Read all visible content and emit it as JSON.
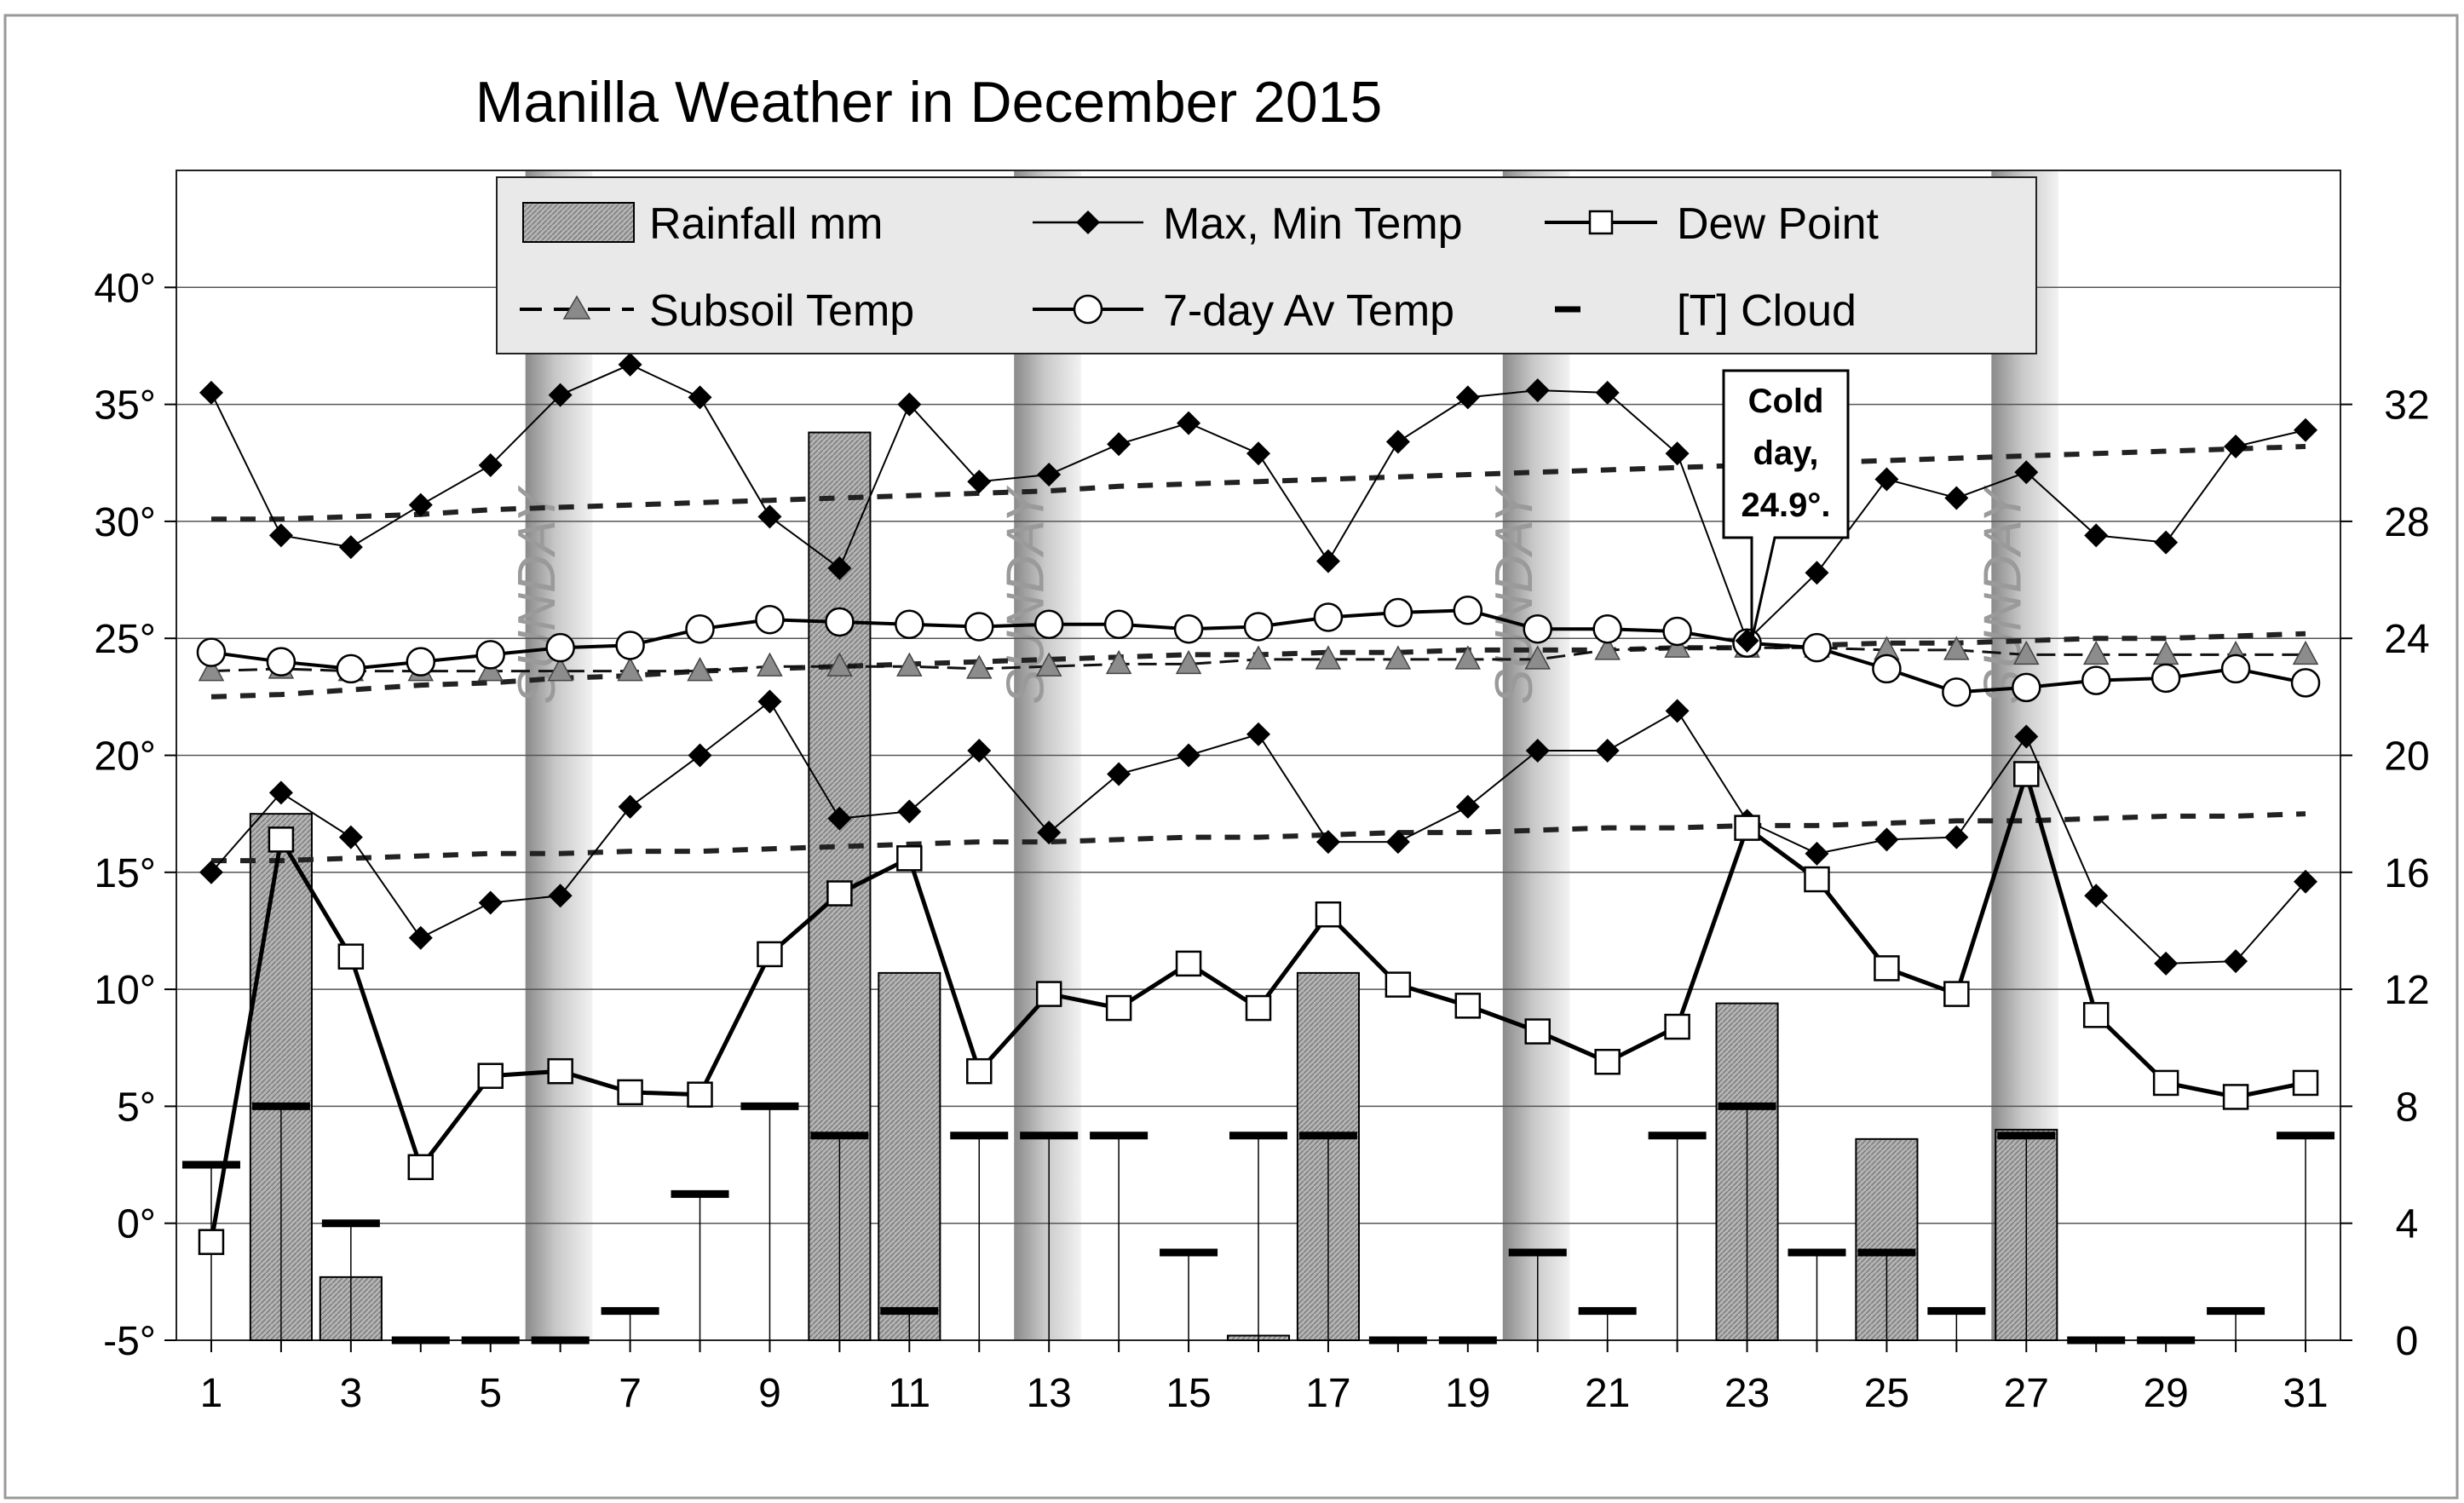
{
  "chart_data": {
    "type": "line",
    "title": "Manilla Weather in December 2015",
    "xlabel": "",
    "ylabel": "",
    "x": [
      1,
      2,
      3,
      4,
      5,
      6,
      7,
      8,
      9,
      10,
      11,
      12,
      13,
      14,
      15,
      16,
      17,
      18,
      19,
      20,
      21,
      22,
      23,
      24,
      25,
      26,
      27,
      28,
      29,
      30,
      31
    ],
    "x_tick_labels": [
      "1",
      "3",
      "5",
      "7",
      "9",
      "11",
      "13",
      "15",
      "17",
      "19",
      "21",
      "23",
      "25",
      "27",
      "29",
      "31"
    ],
    "x_tick_values": [
      1,
      3,
      5,
      7,
      9,
      11,
      13,
      15,
      17,
      19,
      21,
      23,
      25,
      27,
      29,
      31
    ],
    "x_range": [
      0.5,
      31.5
    ],
    "y_left_range": [
      -5,
      45
    ],
    "y_left_ticks": [
      -5,
      0,
      5,
      10,
      15,
      20,
      25,
      30,
      35,
      40
    ],
    "y_left_tick_labels": [
      "-5°",
      "0°",
      "5°",
      "10°",
      "15°",
      "20°",
      "25°",
      "30°",
      "35°",
      "40°"
    ],
    "y_right_range": [
      0,
      40
    ],
    "y_right_ticks": [
      0,
      4,
      8,
      12,
      16,
      20,
      24,
      28,
      32
    ],
    "y_right_tick_labels": [
      "0",
      "4",
      "8",
      "12",
      "16",
      "20",
      "24",
      "28",
      "32"
    ],
    "grid": true,
    "sunday_days": [
      6,
      13,
      20,
      27
    ],
    "sunday_label": "SUNDAY",
    "series": [
      {
        "name": "Rainfall mm",
        "kind": "bar",
        "axis": "left",
        "values": [
          null,
          17.5,
          -2.3,
          null,
          null,
          null,
          null,
          null,
          null,
          33.8,
          10.7,
          null,
          null,
          null,
          null,
          -4.8,
          10.7,
          null,
          null,
          null,
          null,
          null,
          9.4,
          null,
          3.6,
          null,
          4.0,
          null,
          null,
          null,
          null
        ]
      },
      {
        "name": "Max Temp",
        "kind": "line",
        "axis": "left",
        "values": [
          35.5,
          29.4,
          28.9,
          30.7,
          32.4,
          35.4,
          36.7,
          35.3,
          30.2,
          28.0,
          35.0,
          31.7,
          32.0,
          33.3,
          34.2,
          32.9,
          28.3,
          33.4,
          35.3,
          35.6,
          35.5,
          32.9,
          24.9,
          27.8,
          31.8,
          31.0,
          32.1,
          29.4,
          29.1,
          33.2,
          33.9
        ]
      },
      {
        "name": "Min Temp",
        "kind": "line",
        "axis": "left",
        "values": [
          15.0,
          18.4,
          16.5,
          12.2,
          13.7,
          14.0,
          17.8,
          20.0,
          22.3,
          17.3,
          17.6,
          20.2,
          16.7,
          19.2,
          20.0,
          20.9,
          16.3,
          16.3,
          17.8,
          20.2,
          20.2,
          21.9,
          17.2,
          15.8,
          16.4,
          16.5,
          20.8,
          14.0,
          11.1,
          11.2,
          14.6
        ]
      },
      {
        "name": "Dew Point",
        "kind": "line",
        "axis": "left",
        "values": [
          -0.8,
          16.4,
          11.4,
          2.4,
          6.3,
          6.5,
          5.6,
          5.5,
          11.5,
          14.1,
          15.6,
          6.5,
          9.8,
          9.2,
          11.1,
          9.2,
          13.2,
          10.2,
          9.3,
          8.2,
          6.9,
          8.4,
          16.9,
          14.7,
          10.9,
          9.8,
          19.2,
          8.9,
          6.0,
          5.4,
          6.0
        ]
      },
      {
        "name": "Subsoil Temp",
        "kind": "line",
        "axis": "left",
        "values": [
          23.6,
          23.7,
          23.6,
          23.6,
          23.6,
          23.6,
          23.6,
          23.6,
          23.8,
          23.8,
          23.8,
          23.7,
          23.8,
          23.9,
          23.9,
          24.1,
          24.1,
          24.1,
          24.1,
          24.1,
          24.5,
          24.6,
          24.6,
          24.6,
          24.5,
          24.5,
          24.3,
          24.3,
          24.3,
          24.3,
          24.3
        ]
      },
      {
        "name": "7-day Av Temp",
        "kind": "line",
        "axis": "left",
        "values": [
          24.4,
          24.0,
          23.7,
          24.0,
          24.3,
          24.6,
          24.7,
          25.4,
          25.8,
          25.7,
          25.6,
          25.5,
          25.6,
          25.6,
          25.4,
          25.5,
          25.9,
          26.1,
          26.2,
          25.4,
          25.4,
          25.3,
          24.8,
          24.6,
          23.7,
          22.7,
          22.9,
          23.2,
          23.3,
          23.7,
          23.1
        ]
      },
      {
        "name": "Max Temp trend",
        "kind": "dashed",
        "axis": "left",
        "values": [
          30.1,
          30.1,
          30.2,
          30.3,
          30.5,
          30.6,
          30.7,
          30.8,
          30.9,
          31.0,
          31.1,
          31.2,
          31.3,
          31.5,
          31.6,
          31.7,
          31.8,
          31.9,
          32.0,
          32.1,
          32.2,
          32.3,
          32.4,
          32.5,
          32.6,
          32.7,
          32.8,
          32.9,
          33.0,
          33.1,
          33.2
        ]
      },
      {
        "name": "Subsoil trend",
        "kind": "dashed",
        "axis": "left",
        "values": [
          22.5,
          22.6,
          22.8,
          23.0,
          23.1,
          23.3,
          23.4,
          23.6,
          23.7,
          23.8,
          23.9,
          24.0,
          24.1,
          24.2,
          24.3,
          24.3,
          24.4,
          24.4,
          24.5,
          24.5,
          24.5,
          24.6,
          24.6,
          24.7,
          24.8,
          24.8,
          24.9,
          25.0,
          25.0,
          25.1,
          25.2
        ]
      },
      {
        "name": "Min Temp trend",
        "kind": "dashed",
        "axis": "left",
        "values": [
          15.5,
          15.5,
          15.6,
          15.7,
          15.8,
          15.8,
          15.9,
          15.9,
          16.0,
          16.1,
          16.2,
          16.3,
          16.3,
          16.4,
          16.5,
          16.5,
          16.6,
          16.7,
          16.7,
          16.8,
          16.9,
          16.9,
          17.0,
          17.0,
          17.1,
          17.2,
          17.2,
          17.3,
          17.4,
          17.4,
          17.5
        ]
      },
      {
        "name": "[T] Cloud",
        "kind": "cloud",
        "axis": "right",
        "values": [
          6,
          8,
          4,
          0,
          0,
          0,
          1,
          5,
          8,
          7,
          1,
          7,
          7,
          7,
          3,
          7,
          7,
          0,
          0,
          3,
          1,
          7,
          8,
          3,
          3,
          1,
          7,
          0,
          0,
          1,
          7
        ]
      }
    ],
    "legend": {
      "placement": "top",
      "items": [
        {
          "label": "Rainfall mm",
          "symbol": "bar"
        },
        {
          "label": "Max, Min Temp",
          "symbol": "diamond-line"
        },
        {
          "label": "Dew Point",
          "symbol": "square-line"
        },
        {
          "label": "Subsoil Temp",
          "symbol": "triangle-dash"
        },
        {
          "label": "7-day Av Temp",
          "symbol": "circle-line"
        },
        {
          "label": "[T] Cloud",
          "symbol": "cloud-dash"
        }
      ]
    },
    "annotation": {
      "lines": [
        "Cold",
        "day,",
        "24.9°."
      ],
      "day": 23,
      "value": 24.9
    }
  }
}
